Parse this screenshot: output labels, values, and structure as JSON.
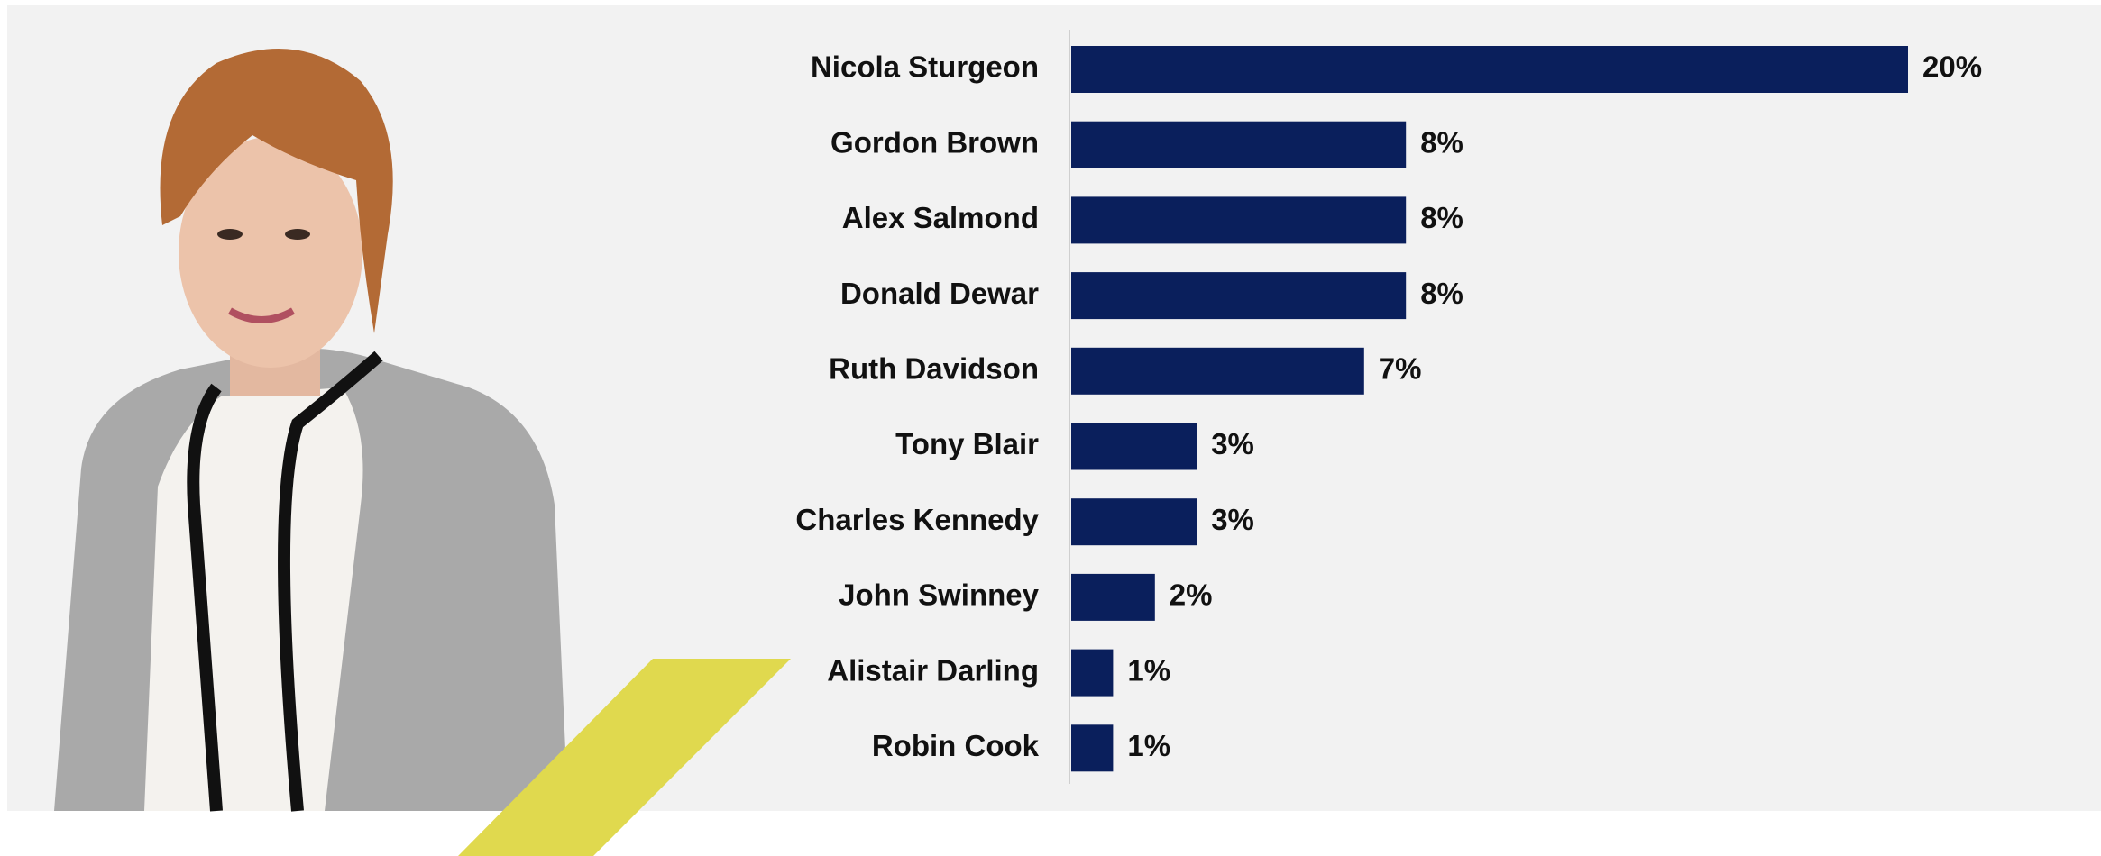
{
  "chart_data": {
    "type": "bar",
    "orientation": "horizontal",
    "categories": [
      "Nicola Sturgeon",
      "Gordon Brown",
      "Alex Salmond",
      "Donald Dewar",
      "Ruth Davidson",
      "Tony Blair",
      "Charles Kennedy",
      "John Swinney",
      "Alistair Darling",
      "Robin Cook"
    ],
    "values": [
      20,
      8,
      8,
      8,
      7,
      3,
      3,
      2,
      1,
      1
    ],
    "value_labels": [
      "20%",
      "8%",
      "8%",
      "8%",
      "7%",
      "3%",
      "3%",
      "2%",
      "1%",
      "1%"
    ],
    "color": "#0a1f5c"
  }
}
